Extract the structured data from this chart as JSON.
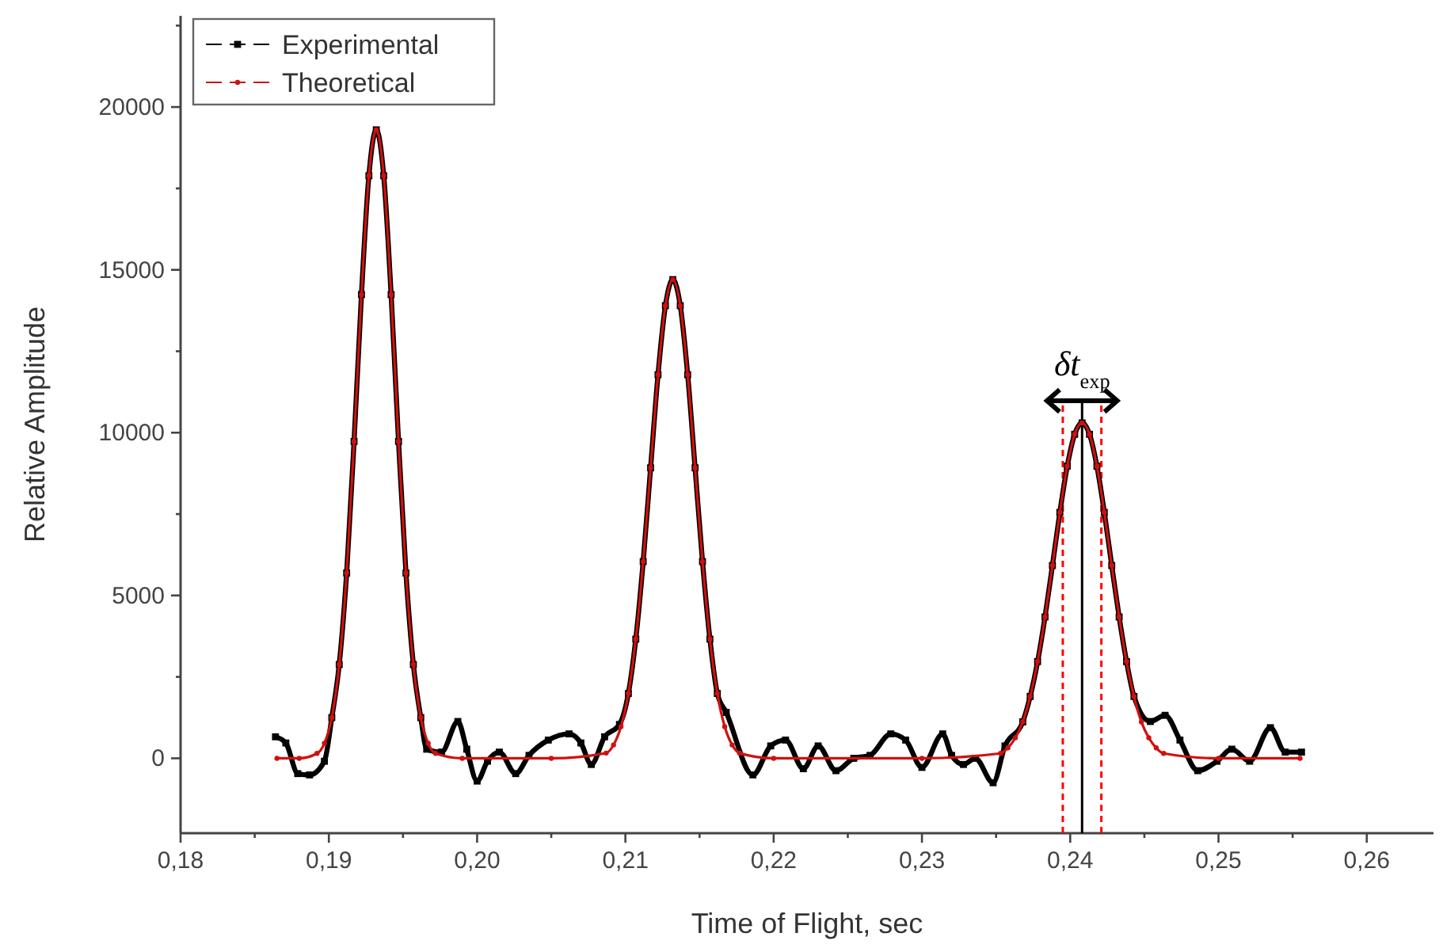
{
  "chart_data": {
    "type": "line",
    "xlabel": "Time of Flight, sec",
    "ylabel": "Relative Amplitude",
    "xlim": [
      0.18,
      0.2645
    ],
    "ylim": [
      -2300,
      22800
    ],
    "xticks": [
      {
        "value": 0.18,
        "label": "0,18"
      },
      {
        "value": 0.185,
        "label": null
      },
      {
        "value": 0.19,
        "label": "0,19"
      },
      {
        "value": 0.195,
        "label": null
      },
      {
        "value": 0.2,
        "label": "0,20"
      },
      {
        "value": 0.205,
        "label": null
      },
      {
        "value": 0.21,
        "label": "0,21"
      },
      {
        "value": 0.215,
        "label": null
      },
      {
        "value": 0.22,
        "label": "0,22"
      },
      {
        "value": 0.225,
        "label": null
      },
      {
        "value": 0.23,
        "label": "0,23"
      },
      {
        "value": 0.235,
        "label": null
      },
      {
        "value": 0.24,
        "label": "0,24"
      },
      {
        "value": 0.245,
        "label": null
      },
      {
        "value": 0.25,
        "label": "0,25"
      },
      {
        "value": 0.255,
        "label": null
      },
      {
        "value": 0.26,
        "label": "0,26"
      }
    ],
    "yticks": [
      0,
      {
        "value": 2500,
        "label": null
      },
      5000,
      {
        "value": 7500,
        "label": null
      },
      10000,
      {
        "value": 12500,
        "label": null
      },
      15000,
      {
        "value": 17500,
        "label": null
      },
      20000,
      {
        "value": 22500,
        "label": null
      }
    ],
    "grid": false,
    "legend": "top left",
    "line_style": "solid",
    "series": [
      {
        "name": "Experimental",
        "color": "#000000",
        "marker": "square",
        "x": [
          0.1864,
          0.1871,
          0.1879,
          0.1887,
          0.1897,
          0.1902,
          0.1907,
          0.1912,
          0.1917,
          0.1922,
          0.1927,
          0.1932,
          0.1937,
          0.1942,
          0.1947,
          0.1952,
          0.1957,
          0.1962,
          0.1966,
          0.1976,
          0.1987,
          0.1993,
          0.2,
          0.2007,
          0.2015,
          0.2026,
          0.2035,
          0.2048,
          0.2062,
          0.207,
          0.2077,
          0.2086,
          0.2096,
          0.2102,
          0.2107,
          0.2112,
          0.2117,
          0.2122,
          0.2127,
          0.2132,
          0.2137,
          0.2142,
          0.2147,
          0.2152,
          0.2157,
          0.2162,
          0.2168,
          0.2186,
          0.2198,
          0.2208,
          0.222,
          0.223,
          0.2242,
          0.2254,
          0.2265,
          0.2279,
          0.2289,
          0.23,
          0.2314,
          0.232,
          0.2328,
          0.2336,
          0.2348,
          0.2356,
          0.2368,
          0.2373,
          0.2378,
          0.2383,
          0.2388,
          0.2393,
          0.2398,
          0.2403,
          0.2408,
          0.2413,
          0.2418,
          0.2423,
          0.2428,
          0.2433,
          0.2438,
          0.2443,
          0.2454,
          0.2464,
          0.2474,
          0.2486,
          0.2499,
          0.2509,
          0.2521,
          0.2535,
          0.2545,
          0.2556
        ],
        "values": [
          660,
          470,
          -470,
          -510,
          -90,
          1250,
          2880,
          5690,
          9730,
          14240,
          17890,
          19300,
          17890,
          14240,
          9730,
          5690,
          2880,
          1250,
          280,
          190,
          1130,
          280,
          -700,
          -90,
          190,
          -470,
          90,
          560,
          750,
          470,
          -190,
          660,
          1040,
          1990,
          3660,
          6040,
          8920,
          11780,
          13900,
          14700,
          13900,
          11780,
          8920,
          6040,
          3660,
          1990,
          1410,
          -510,
          380,
          560,
          -320,
          380,
          -380,
          0,
          90,
          750,
          560,
          -280,
          750,
          90,
          -190,
          0,
          -750,
          380,
          1120,
          1900,
          2970,
          4340,
          5920,
          7550,
          8970,
          9950,
          10300,
          9950,
          8970,
          7550,
          5920,
          4340,
          2970,
          1900,
          1130,
          1320,
          560,
          -380,
          -90,
          280,
          -90,
          940,
          190,
          190
        ]
      },
      {
        "name": "Theoretical",
        "color": "#d01010",
        "marker": "circle",
        "x": [
          0.1865,
          0.188,
          0.1892,
          0.1897,
          0.1902,
          0.1907,
          0.1912,
          0.1917,
          0.1922,
          0.1927,
          0.1932,
          0.1937,
          0.1942,
          0.1947,
          0.1952,
          0.1957,
          0.1962,
          0.1967,
          0.1972,
          0.199,
          0.205,
          0.2087,
          0.2092,
          0.2097,
          0.2102,
          0.2107,
          0.2112,
          0.2117,
          0.2122,
          0.2127,
          0.2132,
          0.2137,
          0.2142,
          0.2147,
          0.2152,
          0.2157,
          0.2162,
          0.2167,
          0.2172,
          0.2177,
          0.22,
          0.23,
          0.2353,
          0.2358,
          0.2363,
          0.2368,
          0.2373,
          0.2378,
          0.2383,
          0.2388,
          0.2393,
          0.2398,
          0.2403,
          0.2408,
          0.2413,
          0.2418,
          0.2423,
          0.2428,
          0.2433,
          0.2438,
          0.2443,
          0.2448,
          0.2453,
          0.2458,
          0.2463,
          0.25,
          0.2555
        ],
        "values": [
          0,
          0,
          150,
          460,
          1250,
          2880,
          5690,
          9730,
          14240,
          17890,
          19300,
          17890,
          14240,
          9730,
          5690,
          2880,
          1250,
          460,
          150,
          0,
          0,
          160,
          410,
          970,
          1990,
          3660,
          6040,
          8920,
          11780,
          13900,
          14700,
          13900,
          11780,
          8920,
          6040,
          3660,
          1990,
          970,
          410,
          160,
          0,
          0,
          150,
          320,
          630,
          1120,
          1900,
          2970,
          4340,
          5920,
          7550,
          8970,
          9950,
          10300,
          9950,
          8970,
          7550,
          5920,
          4340,
          2970,
          1900,
          1120,
          630,
          320,
          150,
          0,
          0
        ]
      }
    ],
    "ref_lines": [
      {
        "axis": "x",
        "value": 0.2395,
        "color": "#ff0000",
        "line_style": "dashed"
      },
      {
        "axis": "x",
        "value": 0.2421,
        "color": "#ff0000",
        "line_style": "dashed"
      },
      {
        "axis": "x",
        "value": 0.2408,
        "color": "#000000",
        "line_style": "solid"
      }
    ],
    "annotations": [
      "δt$_{exp}$"
    ]
  }
}
